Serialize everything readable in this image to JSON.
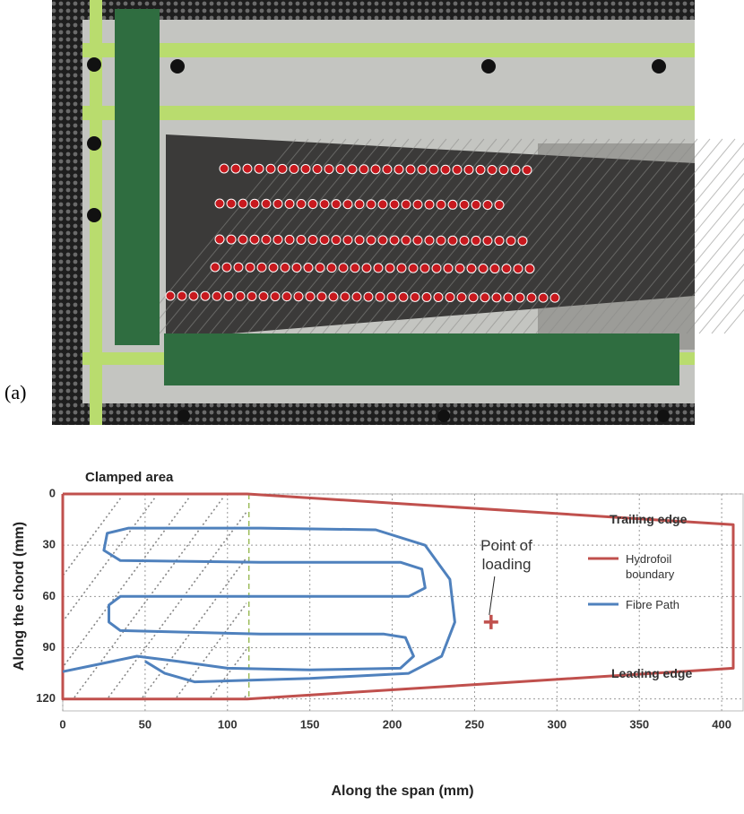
{
  "panel_label": "(a)",
  "chart_data": {
    "type": "line",
    "title": "Clamped area",
    "x_label": "Along the span (mm)",
    "y_label": "Along the chord (mm)",
    "xlim": [
      0,
      413
    ],
    "ylim": [
      0,
      127
    ],
    "y_inverted": true,
    "xticks": [
      0,
      50,
      100,
      150,
      200,
      250,
      300,
      350,
      400
    ],
    "yticks": [
      0,
      30,
      60,
      90,
      120
    ],
    "grid": true,
    "legend": "right",
    "clamp_x": 113,
    "annotations": [
      "Trailing edge",
      "Leading edge"
    ],
    "point": {
      "text": "Point of loading",
      "x": 260,
      "y": 75,
      "color": "#c0504d"
    },
    "series": [
      {
        "name": "Hydrofoil boundary",
        "color": "#c0504d",
        "x": [
          0,
          112,
          407,
          407,
          112,
          0,
          0
        ],
        "values": [
          0,
          0,
          18,
          102,
          120,
          120,
          0
        ]
      },
      {
        "name": "Fibre Path",
        "color": "#4f81bd",
        "x": [
          0,
          20,
          45,
          70,
          100,
          150,
          205,
          213,
          208,
          195,
          120,
          35,
          28,
          28,
          35,
          120,
          210,
          220,
          218,
          205,
          120,
          35,
          25,
          27,
          40,
          120,
          190,
          220,
          235,
          238,
          230,
          210,
          150,
          80,
          62,
          50
        ],
        "values": [
          104,
          100,
          95,
          98,
          102,
          103,
          102,
          95,
          84,
          82,
          82,
          80,
          75,
          65,
          60,
          60,
          60,
          55,
          44,
          40,
          40,
          39,
          33,
          23,
          20,
          20,
          21,
          30,
          50,
          75,
          95,
          105,
          108,
          110,
          105,
          98
        ]
      }
    ]
  }
}
